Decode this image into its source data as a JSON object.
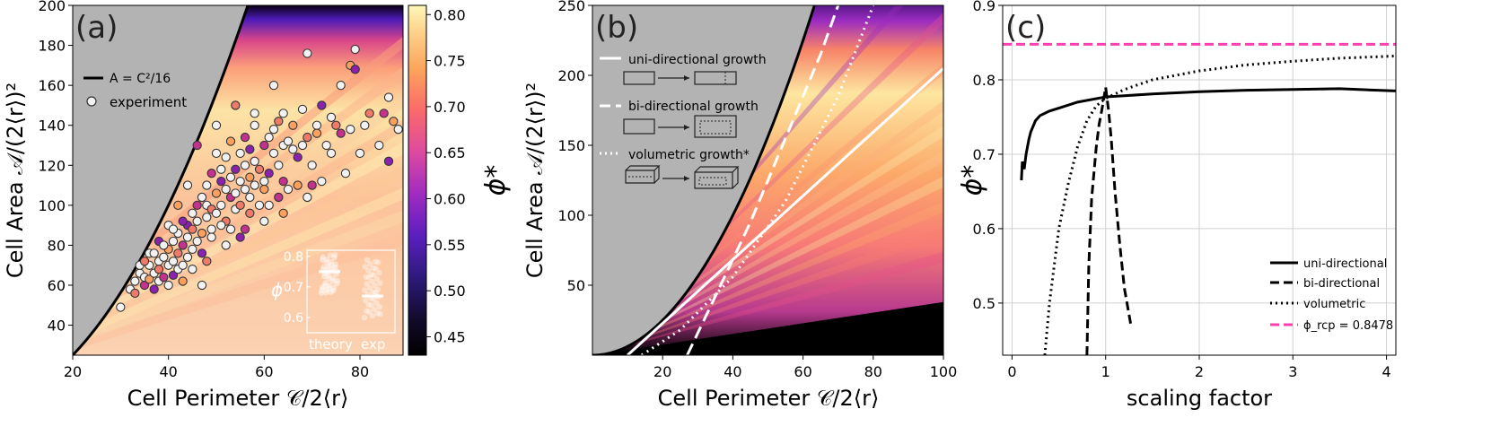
{
  "chart_data": [
    {
      "panel": "(a)",
      "type": "heatmap",
      "xlabel": "Cell Perimeter 𝒞/2⟨r⟩",
      "ylabel": "Cell Area 𝒜/(2⟨r⟩)²",
      "xlim": [
        20,
        89
      ],
      "ylim": [
        25,
        200
      ],
      "x_ticks": [
        20,
        40,
        60,
        80
      ],
      "y_ticks": [
        40,
        60,
        80,
        100,
        120,
        140,
        160,
        180,
        200
      ],
      "x_tick_labels": [
        "20",
        "40",
        "60",
        "80"
      ],
      "y_tick_labels": [
        "40",
        "60",
        "80",
        "100",
        "120",
        "140",
        "160",
        "180",
        "200"
      ],
      "colorbar": {
        "label": "ϕ*",
        "range": [
          0.43,
          0.81
        ],
        "ticks": [
          0.45,
          0.5,
          0.55,
          0.6,
          0.65,
          0.7,
          0.75,
          0.8
        ],
        "tick_labels": [
          "0.45",
          "0.50",
          "0.55",
          "0.60",
          "0.65",
          "0.70",
          "0.75",
          "0.80"
        ]
      },
      "legend": [
        {
          "label": "A = C²/16",
          "style": "black line"
        },
        {
          "label": "experiment",
          "style": "white circle"
        }
      ],
      "experiment_points": [
        [
          30,
          49
        ],
        [
          32,
          58
        ],
        [
          33,
          62
        ],
        [
          33,
          56
        ],
        [
          34,
          66
        ],
        [
          35,
          60
        ],
        [
          35,
          64
        ],
        [
          36,
          63
        ],
        [
          36,
          70
        ],
        [
          37,
          58
        ],
        [
          37,
          66
        ],
        [
          38,
          62
        ],
        [
          38,
          72
        ],
        [
          38,
          68
        ],
        [
          39,
          74
        ],
        [
          39,
          64
        ],
        [
          40,
          70
        ],
        [
          40,
          78
        ],
        [
          40,
          60
        ],
        [
          41,
          65
        ],
        [
          41,
          82
        ],
        [
          41,
          72
        ],
        [
          42,
          68
        ],
        [
          42,
          76
        ],
        [
          42,
          86
        ],
        [
          43,
          80
        ],
        [
          43,
          70
        ],
        [
          43,
          62
        ],
        [
          44,
          84
        ],
        [
          44,
          90
        ],
        [
          44,
          74
        ],
        [
          45,
          78
        ],
        [
          45,
          96
        ],
        [
          45,
          88
        ],
        [
          46,
          82
        ],
        [
          46,
          100
        ],
        [
          46,
          92
        ],
        [
          47,
          86
        ],
        [
          47,
          104
        ],
        [
          47,
          76
        ],
        [
          48,
          94
        ],
        [
          48,
          110
        ],
        [
          48,
          100
        ],
        [
          49,
          98
        ],
        [
          49,
          88
        ],
        [
          49,
          116
        ],
        [
          50,
          96
        ],
        [
          50,
          106
        ],
        [
          50,
          126
        ],
        [
          51,
          112
        ],
        [
          51,
          100
        ],
        [
          51,
          118
        ],
        [
          52,
          108
        ],
        [
          52,
          92
        ],
        [
          52,
          124
        ],
        [
          53,
          104
        ],
        [
          53,
          114
        ],
        [
          53,
          132
        ],
        [
          54,
          98
        ],
        [
          54,
          118
        ],
        [
          54,
          106
        ],
        [
          55,
          126
        ],
        [
          55,
          112
        ],
        [
          55,
          100
        ],
        [
          56,
          108
        ],
        [
          56,
          134
        ],
        [
          56,
          120
        ],
        [
          57,
          114
        ],
        [
          57,
          104
        ],
        [
          57,
          128
        ],
        [
          58,
          110
        ],
        [
          58,
          140
        ],
        [
          58,
          122
        ],
        [
          59,
          118
        ],
        [
          59,
          100
        ],
        [
          60,
          130
        ],
        [
          60,
          112
        ],
        [
          60,
          108
        ],
        [
          61,
          134
        ],
        [
          61,
          116
        ],
        [
          62,
          126
        ],
        [
          62,
          138
        ],
        [
          63,
          120
        ],
        [
          63,
          142
        ],
        [
          64,
          130
        ],
        [
          64,
          112
        ],
        [
          65,
          132
        ],
        [
          66,
          140
        ],
        [
          66,
          128
        ],
        [
          67,
          124
        ],
        [
          68,
          148
        ],
        [
          68,
          130
        ],
        [
          69,
          176
        ],
        [
          69,
          134
        ],
        [
          70,
          120
        ],
        [
          70,
          110
        ],
        [
          71,
          140
        ],
        [
          71,
          136
        ],
        [
          72,
          112
        ],
        [
          72,
          150
        ],
        [
          73,
          130
        ],
        [
          74,
          126
        ],
        [
          74,
          144
        ],
        [
          75,
          140
        ],
        [
          76,
          160
        ],
        [
          76,
          136
        ],
        [
          77,
          116
        ],
        [
          78,
          170
        ],
        [
          78,
          138
        ],
        [
          79,
          168
        ],
        [
          79,
          178
        ],
        [
          80,
          126
        ],
        [
          81,
          140
        ],
        [
          82,
          146
        ],
        [
          84,
          130
        ],
        [
          85,
          146
        ],
        [
          86,
          154
        ],
        [
          87,
          142
        ],
        [
          88,
          138
        ],
        [
          86,
          122
        ],
        [
          62,
          160
        ],
        [
          64,
          146
        ],
        [
          58,
          146
        ],
        [
          54,
          150
        ],
        [
          50,
          140
        ],
        [
          46,
          130
        ],
        [
          44,
          110
        ],
        [
          42,
          100
        ],
        [
          40,
          90
        ],
        [
          38,
          82
        ],
        [
          36,
          76
        ],
        [
          34,
          70
        ],
        [
          45,
          68
        ],
        [
          48,
          72
        ],
        [
          52,
          80
        ],
        [
          56,
          88
        ],
        [
          60,
          92
        ],
        [
          64,
          96
        ],
        [
          47,
          60
        ],
        [
          55,
          84
        ],
        [
          53,
          88
        ],
        [
          51,
          90
        ],
        [
          49,
          84
        ],
        [
          57,
          96
        ],
        [
          61,
          100
        ],
        [
          63,
          104
        ],
        [
          65,
          108
        ],
        [
          67,
          110
        ],
        [
          69,
          104
        ],
        [
          43,
          92
        ],
        [
          41,
          88
        ],
        [
          39,
          80
        ],
        [
          37,
          76
        ],
        [
          35,
          72
        ]
      ],
      "inset": {
        "ylabel": "ϕ",
        "categories": [
          "theory",
          "exp"
        ],
        "ylim": [
          0.55,
          0.82
        ],
        "y_ticks": [
          0.6,
          0.7,
          0.8
        ],
        "y_tick_labels": [
          "0.6",
          "0.7",
          "0.8"
        ],
        "medians": [
          0.75,
          0.67
        ]
      }
    },
    {
      "panel": "(b)",
      "type": "heatmap",
      "xlabel": "Cell Perimeter 𝒞/2⟨r⟩",
      "ylabel": "Cell Area 𝒜/(2⟨r⟩)²",
      "xlim": [
        0,
        100
      ],
      "ylim": [
        0,
        250
      ],
      "x_ticks": [
        20,
        40,
        60,
        80,
        100
      ],
      "y_ticks": [
        50,
        100,
        150,
        200,
        250
      ],
      "x_tick_labels": [
        "20",
        "40",
        "60",
        "80",
        "100"
      ],
      "y_tick_labels": [
        "50",
        "100",
        "150",
        "200",
        "250"
      ],
      "legend": [
        {
          "label": "uni-directional growth",
          "style": "solid white"
        },
        {
          "label": "bi-directional growth",
          "style": "dashed white"
        },
        {
          "label": "volumetric growth*",
          "style": "dotted white"
        }
      ],
      "series": [
        {
          "name": "uni-directional growth",
          "style": "solid",
          "x": [
            10,
            100
          ],
          "y": [
            0,
            205
          ]
        },
        {
          "name": "bi-directional growth",
          "style": "dashed",
          "x": [
            27,
            35,
            45,
            55,
            65,
            70
          ],
          "y": [
            0,
            42,
            95,
            155,
            215,
            250
          ]
        },
        {
          "name": "volumetric growth*",
          "style": "dotted",
          "x": [
            14,
            25,
            40,
            55,
            70,
            80
          ],
          "y": [
            0,
            18,
            56,
            110,
            185,
            250
          ]
        }
      ]
    },
    {
      "panel": "(c)",
      "type": "line",
      "xlabel": "scaling factor",
      "ylabel": "ϕ*",
      "xlim": [
        -0.1,
        4.1
      ],
      "ylim": [
        0.43,
        0.9
      ],
      "x_ticks": [
        0,
        1,
        2,
        3,
        4
      ],
      "y_ticks": [
        0.5,
        0.6,
        0.7,
        0.8,
        0.9
      ],
      "x_tick_labels": [
        "0",
        "1",
        "2",
        "3",
        "4"
      ],
      "y_tick_labels": [
        "0.5",
        "0.6",
        "0.7",
        "0.8",
        "0.9"
      ],
      "grid": true,
      "legend_position": "bottom-right",
      "series": [
        {
          "name": "uni-directional",
          "style": "solid",
          "color": "#000000",
          "x": [
            0.1,
            0.11,
            0.13,
            0.15,
            0.18,
            0.2,
            0.25,
            0.3,
            0.4,
            0.5,
            0.7,
            1.0,
            1.5,
            2.0,
            2.5,
            3.0,
            3.5,
            4.1
          ],
          "y": [
            0.665,
            0.69,
            0.68,
            0.7,
            0.72,
            0.73,
            0.745,
            0.752,
            0.758,
            0.762,
            0.77,
            0.777,
            0.781,
            0.784,
            0.786,
            0.787,
            0.788,
            0.785
          ]
        },
        {
          "name": "bi-directional",
          "style": "dashed",
          "color": "#000000",
          "x": [
            0.8,
            0.82,
            0.85,
            0.9,
            0.93,
            0.96,
            1.0,
            1.03,
            1.06,
            1.1,
            1.15,
            1.2,
            1.27
          ],
          "y": [
            0.43,
            0.55,
            0.64,
            0.71,
            0.74,
            0.76,
            0.79,
            0.76,
            0.72,
            0.65,
            0.58,
            0.52,
            0.47
          ]
        },
        {
          "name": "volumetric",
          "style": "dotted",
          "color": "#000000",
          "x": [
            0.35,
            0.4,
            0.5,
            0.6,
            0.7,
            0.8,
            0.9,
            1.0,
            1.2,
            1.5,
            2.0,
            2.5,
            3.0,
            3.5,
            4.1
          ],
          "y": [
            0.43,
            0.5,
            0.6,
            0.66,
            0.71,
            0.745,
            0.765,
            0.775,
            0.787,
            0.8,
            0.812,
            0.82,
            0.825,
            0.829,
            0.832
          ]
        },
        {
          "name": "ϕ_rcp = 0.8478",
          "style": "dashed",
          "color": "#ff3fb1",
          "x": [
            -0.1,
            4.1
          ],
          "y": [
            0.8478,
            0.8478
          ]
        }
      ]
    }
  ]
}
